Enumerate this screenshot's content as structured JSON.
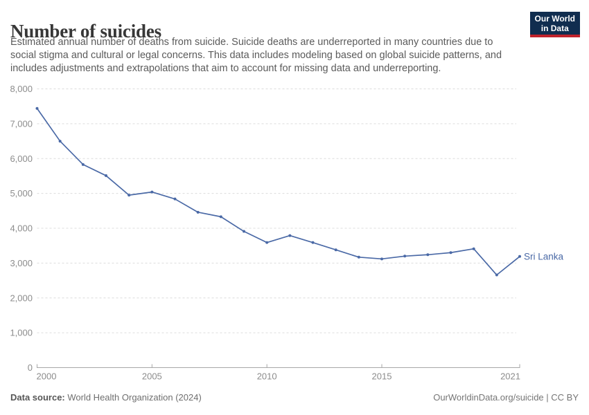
{
  "header": {
    "title": "Number of suicides",
    "subtitle_lines": [
      "Estimated annual number of deaths from suicide. Suicide deaths are underreported in many countries due to",
      "social stigma and cultural or legal concerns. This data includes modeling based on global suicide patterns, and",
      "includes adjustments and extrapolations that aim to account for missing data and underreporting."
    ],
    "logo": {
      "line1": "Our World",
      "line2": "in Data"
    }
  },
  "footer": {
    "source_label": "Data source:",
    "source_value": " World Health Organization (2024)",
    "credit": "OurWorldinData.org/suicide | CC BY"
  },
  "colors": {
    "line": "#4A69A6",
    "entity_label": "#4A69A6",
    "grid": "#dcdcdc",
    "axis": "#a6a6a6",
    "tick_label": "#8c8c8c",
    "title": "#373737",
    "subtitle": "#5a5a5a",
    "logo_bg": "#102D4F",
    "logo_red": "#C0232C"
  },
  "chart_data": {
    "type": "line",
    "title": "Number of suicides",
    "xlabel": "",
    "ylabel": "",
    "grid": "horizontal-dashed",
    "legend": "inline-end-label",
    "x": [
      2000,
      2001,
      2002,
      2003,
      2004,
      2005,
      2006,
      2007,
      2008,
      2009,
      2010,
      2011,
      2012,
      2013,
      2014,
      2015,
      2016,
      2017,
      2018,
      2019,
      2020,
      2021
    ],
    "series": [
      {
        "name": "Sri Lanka",
        "values": [
          7440,
          6500,
          5830,
          5510,
          4950,
          5040,
          4840,
          4460,
          4330,
          3910,
          3590,
          3790,
          3590,
          3380,
          3170,
          3120,
          3200,
          3240,
          3300,
          3410,
          2660,
          3190
        ]
      }
    ],
    "xlim": [
      2000,
      2021
    ],
    "ylim": [
      0,
      8000
    ],
    "y_ticks": [
      0,
      1000,
      2000,
      3000,
      4000,
      5000,
      6000,
      7000,
      8000
    ],
    "x_ticks": [
      2000,
      2005,
      2010,
      2015,
      2021
    ]
  }
}
